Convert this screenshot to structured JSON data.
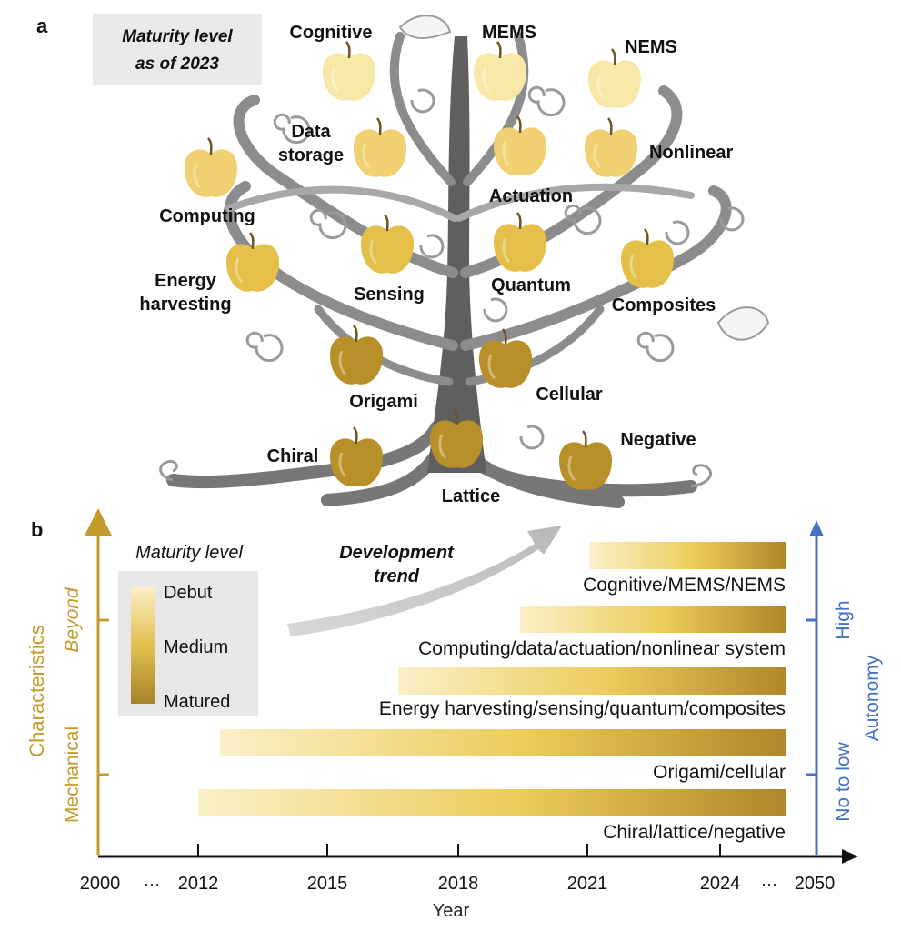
{
  "panel_a": {
    "letter": "a",
    "maturity_box": {
      "line1": "Maturity level",
      "line2": "as of 2023"
    },
    "apples": [
      {
        "id": "cognitive",
        "label": "Cognitive",
        "maturity": "debut"
      },
      {
        "id": "mems",
        "label": "MEMS",
        "maturity": "debut"
      },
      {
        "id": "nems",
        "label": "NEMS",
        "maturity": "debut"
      },
      {
        "id": "data-storage",
        "label": "Data\nstorage",
        "maturity": "early"
      },
      {
        "id": "actuation",
        "label": "Actuation",
        "maturity": "early"
      },
      {
        "id": "nonlinear",
        "label": "Nonlinear",
        "maturity": "early"
      },
      {
        "id": "computing",
        "label": "Computing",
        "maturity": "early"
      },
      {
        "id": "energy-harvesting",
        "label": "Energy\nharvesting",
        "maturity": "medium"
      },
      {
        "id": "sensing",
        "label": "Sensing",
        "maturity": "medium"
      },
      {
        "id": "quantum",
        "label": "Quantum",
        "maturity": "medium"
      },
      {
        "id": "composites",
        "label": "Composites",
        "maturity": "medium"
      },
      {
        "id": "origami",
        "label": "Origami",
        "maturity": "matured"
      },
      {
        "id": "cellular",
        "label": "Cellular",
        "maturity": "matured"
      },
      {
        "id": "chiral",
        "label": "Chiral",
        "maturity": "matured"
      },
      {
        "id": "lattice",
        "label": "Lattice",
        "maturity": "matured"
      },
      {
        "id": "negative",
        "label": "Negative",
        "maturity": "matured"
      }
    ]
  },
  "panel_b": {
    "letter": "b",
    "legend": {
      "title": "Maturity level",
      "debut": "Debut",
      "medium": "Medium",
      "matured": "Matured"
    },
    "trend": {
      "line1": "Development",
      "line2": "trend"
    },
    "left_axis": {
      "label": "Characteristics",
      "upper": "Beyond",
      "lower": "Mechanical",
      "color": "#c49a2c"
    },
    "right_axis": {
      "label": "Autonomy",
      "upper": "High",
      "lower": "No to low",
      "color": "#4472c4"
    },
    "x_axis": {
      "title": "Year",
      "ticks": [
        "2000",
        "2012",
        "2015",
        "2018",
        "2021",
        "2024",
        "2050"
      ],
      "ellipsis": "···"
    },
    "bars": [
      {
        "label": "Cognitive/MEMS/NEMS",
        "start": 2021
      },
      {
        "label": "Computing/data/actuation/nonlinear system",
        "start": 2019.4
      },
      {
        "label": "Energy harvesting/sensing/quantum/composites",
        "start": 2016.6
      },
      {
        "label": "Origami/cellular",
        "start": 2012.5
      },
      {
        "label": "Chiral/lattice/negative",
        "start": 2012
      }
    ]
  },
  "colors": {
    "debut": "#f7e8a8",
    "early": "#f0d070",
    "medium": "#e4c04a",
    "matured": "#b8902a",
    "trunk": "#5a5a5a",
    "branch": "#8a8a8a"
  }
}
